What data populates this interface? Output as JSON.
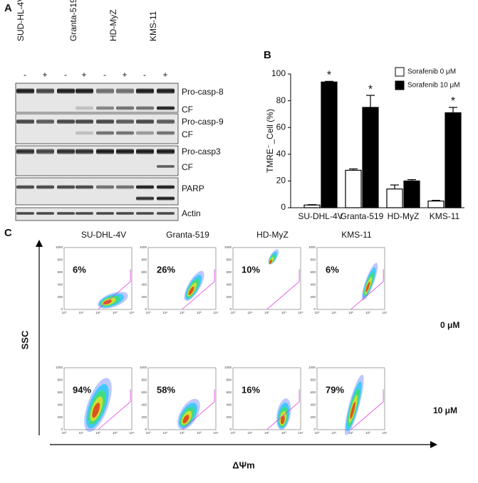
{
  "panel_a": {
    "label": "A",
    "cell_lines": [
      "SUD-HL-4V",
      "Granta-519",
      "HD-MyZ",
      "KMS-11"
    ],
    "treatments": [
      "-",
      "+"
    ],
    "blot_labels": [
      "Pro-casp-8",
      "CF",
      "Pro-casp-9",
      "CF",
      "Pro-casp3",
      "CF",
      "PARP",
      "Actin"
    ]
  },
  "panel_b_label": "B",
  "chart_data": {
    "type": "bar",
    "ylabel": "TMRE⁻_Cell (%)",
    "categories": [
      "SU-DHL-4V",
      "Granta-519",
      "HD-MyZ",
      "KMS-11"
    ],
    "series": [
      {
        "name": "Sorafenib 0 μM",
        "color": "#ffffff",
        "values": [
          2,
          28,
          14,
          5
        ],
        "errors": [
          0.3,
          1,
          3,
          0.5
        ]
      },
      {
        "name": "Sorafenib 10 μM",
        "color": "#000000",
        "values": [
          94,
          75,
          20,
          71
        ],
        "errors": [
          0.5,
          9,
          1,
          4
        ],
        "significance": [
          "*",
          "*",
          null,
          "*"
        ]
      }
    ],
    "ylim": [
      0,
      100
    ],
    "yticks": [
      0,
      20,
      40,
      60,
      80,
      100
    ],
    "legend": "top-right"
  },
  "panel_c": {
    "label": "C",
    "cell_lines": [
      "SU-DHL-4V",
      "Granta-519",
      "HD-MyZ",
      "KMS-11"
    ],
    "doses": [
      "0 μM",
      "10 μM"
    ],
    "percentages": [
      [
        "6%",
        "26%",
        "10%",
        "6%"
      ],
      [
        "94%",
        "58%",
        "16%",
        "79%"
      ]
    ],
    "y_axis": "SSC",
    "x_axis": "ΔΨm",
    "plot_yticks": [
      "0",
      "200",
      "400",
      "600",
      "800",
      "1000"
    ],
    "plot_xticks": [
      "10⁰",
      "10¹",
      "10²",
      "10³",
      "10⁴"
    ]
  }
}
